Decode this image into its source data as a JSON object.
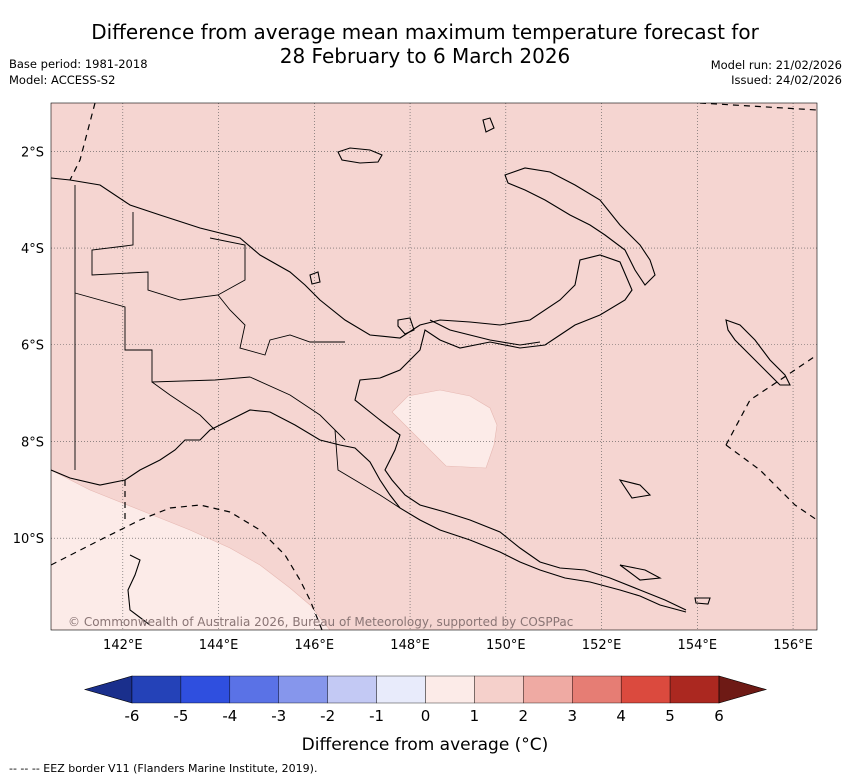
{
  "header": {
    "title_line1": "Difference from average mean maximum temperature forecast for",
    "title_line2": "28 February to 6 March 2026",
    "base_period": "Base period: 1981-2018",
    "model": "Model: ACCESS-S2",
    "model_run": "Model run: 21/02/2026",
    "issued": "Issued: 24/02/2026"
  },
  "map": {
    "lat_labels": [
      "2°S",
      "4°S",
      "6°S",
      "8°S",
      "10°S"
    ],
    "lon_labels": [
      "142°E",
      "144°E",
      "146°E",
      "148°E",
      "150°E",
      "152°E",
      "154°E",
      "156°E"
    ],
    "lat_values": [
      -2,
      -4,
      -6,
      -8,
      -10
    ],
    "lon_values": [
      142,
      144,
      146,
      148,
      150,
      152,
      154,
      156
    ],
    "extent": {
      "lon_min": 140.5,
      "lon_max": 156.5,
      "lat_min": -11.9,
      "lat_max": -1.0
    },
    "copyright": "© Commonwealth of Australia 2026, Bureau of Meteorology, supported by COSPPac",
    "colors": {
      "dominant_fill": "#f5d5d1",
      "light_fill": "#fcebe8"
    }
  },
  "colorbar": {
    "tick_labels": [
      "-6",
      "-5",
      "-4",
      "-3",
      "-2",
      "-1",
      "0",
      "1",
      "2",
      "3",
      "4",
      "5",
      "6"
    ],
    "colors": [
      "#1a2f8c",
      "#2442b8",
      "#2f4fdf",
      "#5a72e6",
      "#8696ec",
      "#c3c9f4",
      "#e8ebfb",
      "#fcebe8",
      "#f5d0cb",
      "#efaaa3",
      "#e67d74",
      "#db4a3e",
      "#ab2820",
      "#6e1a15"
    ],
    "label": "Difference from average (°C)"
  },
  "footer": {
    "eez_legend": "--  --  -- EEZ border V11 (Flanders Marine Institute, 2019)."
  }
}
